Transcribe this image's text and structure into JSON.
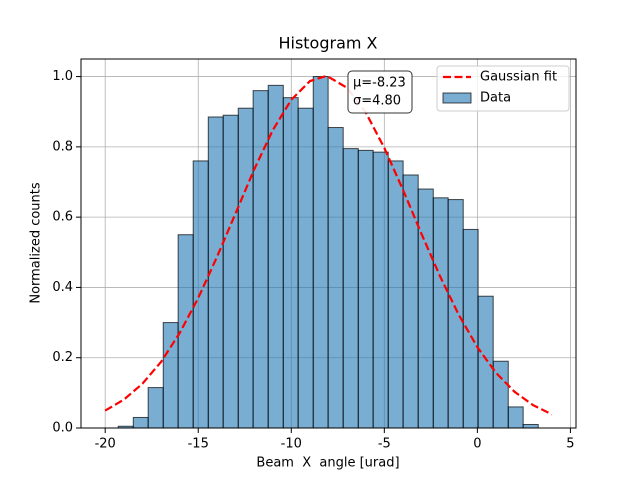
{
  "chart_data": {
    "type": "histogram",
    "title": "Histogram X",
    "xlabel": "Beam  X  angle [urad]",
    "ylabel": "Normalized counts",
    "xlim": [
      -21.3,
      5.3
    ],
    "ylim": [
      0,
      1.05
    ],
    "xticks": [
      -20,
      -15,
      -10,
      -5,
      0,
      5
    ],
    "yticks": [
      {
        "value": 0,
        "label": "0.0"
      },
      0.2,
      0.4,
      0.6,
      0.8,
      {
        "value": 1,
        "label": "1.0"
      }
    ],
    "grid": true,
    "legend": "upper right",
    "annotations": [
      "μ=-8.23",
      "σ=4.80"
    ],
    "series": [
      {
        "name": "Gaussian fit",
        "type": "line",
        "color": "#ff0000",
        "x": [
          -20,
          -19,
          -18,
          -17,
          -16,
          -15,
          -14,
          -13,
          -12,
          -11,
          -10,
          -9,
          -8.23,
          -8,
          -7,
          -6,
          -5,
          -4,
          -3,
          -2,
          -1,
          0,
          1,
          2,
          3,
          4
        ],
        "values": [
          0.0495,
          0.0807,
          0.126,
          0.188,
          0.27,
          0.37,
          0.486,
          0.61,
          0.735,
          0.847,
          0.934,
          0.987,
          1.0,
          0.999,
          0.968,
          0.898,
          0.797,
          0.678,
          0.552,
          0.431,
          0.322,
          0.23,
          0.157,
          0.103,
          0.0648,
          0.0389
        ]
      },
      {
        "name": "Data",
        "type": "histogram",
        "color": "#1f77b4",
        "alpha": 0.6,
        "edgecolor": "#000000",
        "bins": [
          -19.3,
          -18.49,
          -17.69,
          -16.88,
          -16.08,
          -15.27,
          -14.46,
          -13.66,
          -12.85,
          -12.05,
          -11.24,
          -10.43,
          -9.63,
          -8.82,
          -8.02,
          -7.21,
          -6.4,
          -5.6,
          -4.79,
          -3.99,
          -3.18,
          -2.37,
          -1.57,
          -0.76,
          0.04,
          0.85,
          1.66,
          2.46,
          3.27
        ],
        "values": [
          0.005,
          0.03,
          0.115,
          0.3,
          0.55,
          0.76,
          0.885,
          0.89,
          0.91,
          0.96,
          0.975,
          0.94,
          0.91,
          1.0,
          0.855,
          0.795,
          0.79,
          0.785,
          0.76,
          0.72,
          0.68,
          0.655,
          0.65,
          0.565,
          0.375,
          0.19,
          0.06,
          0.01
        ]
      }
    ]
  }
}
